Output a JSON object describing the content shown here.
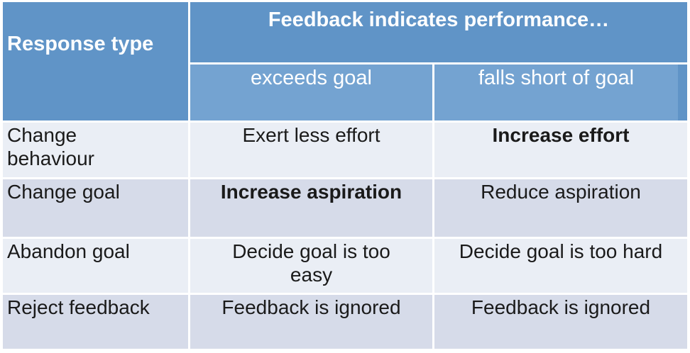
{
  "table": {
    "corner_header": "Response type",
    "top_header": "Feedback indicates performance…",
    "column_headers": [
      "exceeds goal",
      "falls short of goal"
    ],
    "rows": [
      {
        "label": "Change behaviour",
        "cells": [
          {
            "text": "Exert less effort",
            "bold": false
          },
          {
            "text": "Increase effort",
            "bold": true
          }
        ]
      },
      {
        "label": "Change goal",
        "cells": [
          {
            "text": "Increase aspiration",
            "bold": true
          },
          {
            "text": "Reduce aspiration",
            "bold": false
          }
        ]
      },
      {
        "label": "Abandon goal",
        "cells": [
          {
            "text": "Decide goal is too easy",
            "bold": false
          },
          {
            "text": "Decide goal is too hard",
            "bold": false
          }
        ]
      },
      {
        "label": "Reject feedback",
        "cells": [
          {
            "text": "Feedback is ignored",
            "bold": false
          },
          {
            "text": "Feedback is ignored",
            "bold": false
          }
        ]
      }
    ],
    "colors": {
      "header_blue": "#6094c7",
      "subheader_blue": "#74a3d1",
      "row_light": "#eaeef5",
      "row_dark": "#d6dbe9",
      "header_text": "#ffffff",
      "body_text": "#1a1a1a"
    }
  }
}
